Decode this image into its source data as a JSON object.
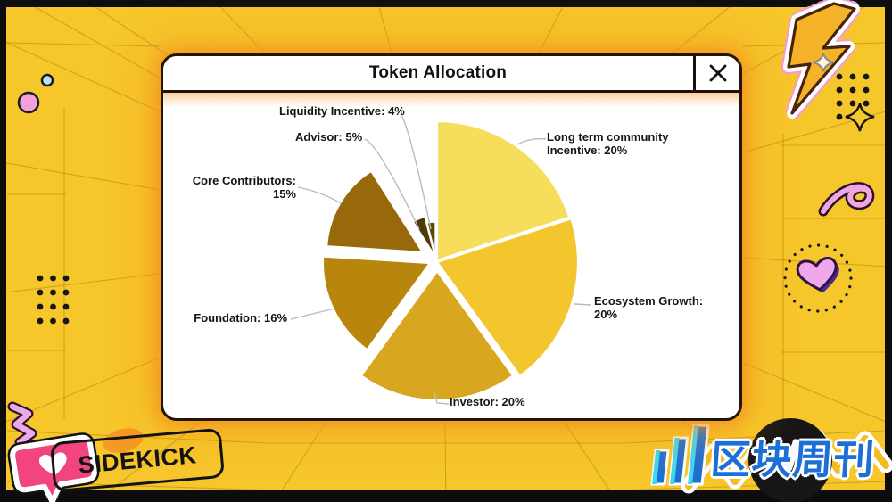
{
  "window": {
    "title": "Token Allocation",
    "close_icon": "x-cross"
  },
  "chart_data": {
    "type": "pie",
    "title": "Token Allocation",
    "unit": "percent",
    "direction": "clockwise",
    "start_angle_deg": 0,
    "labels_show_percent": true,
    "label_format": "{label}: {value}%",
    "slices": [
      {
        "label": "Long term community Incentive",
        "value": 20,
        "color": "#F6DE5C"
      },
      {
        "label": "Ecosystem Growth",
        "value": 20,
        "color": "#F3C62E"
      },
      {
        "label": "Investor",
        "value": 20,
        "color": "#D9A71F"
      },
      {
        "label": "Foundation",
        "value": 16,
        "color": "#B9860D"
      },
      {
        "label": "Core Contributors",
        "value": 15,
        "color": "#97690A"
      },
      {
        "label": "Advisor",
        "value": 5,
        "color": "#4F3A05"
      },
      {
        "label": "Liquidity Incentive",
        "value": 4,
        "color": "#5E4607"
      }
    ],
    "leader_line_color": "#BBBBBB",
    "slice_gap_color": "#FFFFFF",
    "legend_position": "none",
    "label_text_color": "#151515"
  },
  "stickers": {
    "sidekick_label": "SIDEKICK",
    "logo_text": "区块周刊"
  },
  "palette": {
    "background": "#F6C72B",
    "frame": "#0D0D0D",
    "window_glow": "#F39420",
    "sticker_pink": "#F0A6DE",
    "badge_pink": "#F0457E",
    "logo_blue": "#1B6FD6",
    "logo_cyan": "#3ED8F2"
  },
  "decorations": {
    "left": [
      "blue-dot-icon",
      "pink-circle-icon",
      "dots-grid",
      "squiggle-icon",
      "heart-bubble-icon",
      "blob-icon"
    ],
    "top_right": [
      "lightning-icon",
      "sparkle-icon",
      "dots-grid",
      "yellow-sparkle-icon",
      "ribbon-icon",
      "heart-sticker"
    ],
    "bottom_right": [
      "zigzag-icon",
      "record-pause-icon",
      "signal-bars-icon"
    ]
  }
}
